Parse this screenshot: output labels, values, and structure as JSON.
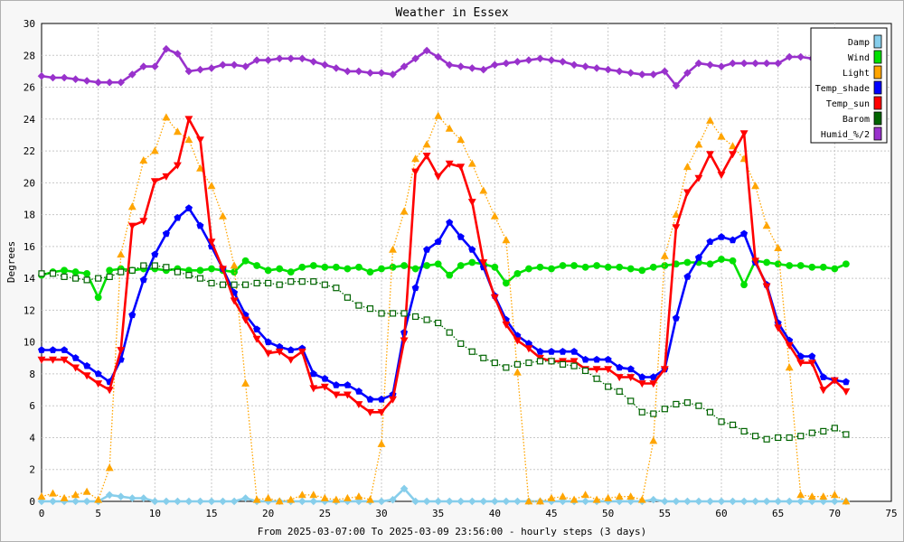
{
  "chart_data": {
    "type": "line",
    "title": "Weather in Essex",
    "xlabel": "From 2025-03-07:00 To 2025-03-09 23:56:00 - hourly steps (3 days)",
    "ylabel": "Degrees",
    "xlim": [
      0,
      75
    ],
    "ylim": [
      0,
      30
    ],
    "x_ticks": [
      0,
      5,
      10,
      15,
      20,
      25,
      30,
      35,
      40,
      45,
      50,
      55,
      60,
      65,
      70,
      75
    ],
    "y_ticks": [
      0,
      2,
      4,
      6,
      8,
      10,
      12,
      14,
      16,
      18,
      20,
      22,
      24,
      26,
      28,
      30
    ],
    "grid": true,
    "legend_position": "top-right",
    "series": [
      {
        "name": "Damp",
        "color": "#87ceeb",
        "marker": "diamond",
        "dash": "solid",
        "values": [
          0,
          0,
          0,
          0,
          0,
          0,
          0.4,
          0.3,
          0.2,
          0.2,
          0,
          0,
          0,
          0,
          0,
          0,
          0,
          0,
          0.2,
          0,
          0,
          0,
          0,
          0,
          0,
          0,
          0,
          0,
          0,
          0,
          0,
          0.1,
          0.8,
          0,
          0,
          0,
          0,
          0,
          0,
          0,
          0,
          0,
          0,
          0,
          0,
          0,
          0,
          0,
          0,
          0,
          0,
          0,
          0,
          0,
          0.1,
          0,
          0,
          0,
          0,
          0,
          0,
          0,
          0,
          0,
          0,
          0,
          0,
          0,
          0,
          0,
          0,
          0
        ]
      },
      {
        "name": "Wind",
        "color": "#00e000",
        "marker": "circle",
        "dash": "solid",
        "values": [
          14.2,
          14.4,
          14.5,
          14.4,
          14.3,
          12.8,
          14.5,
          14.6,
          14.5,
          14.6,
          14.6,
          14.5,
          14.6,
          14.5,
          14.5,
          14.6,
          14.5,
          14.4,
          15.1,
          14.8,
          14.5,
          14.6,
          14.4,
          14.7,
          14.8,
          14.7,
          14.7,
          14.6,
          14.7,
          14.4,
          14.6,
          14.7,
          14.8,
          14.6,
          14.8,
          14.9,
          14.2,
          14.8,
          15.0,
          14.9,
          14.7,
          13.7,
          14.3,
          14.6,
          14.7,
          14.6,
          14.8,
          14.8,
          14.7,
          14.8,
          14.7,
          14.7,
          14.6,
          14.5,
          14.7,
          14.8,
          14.9,
          15.0,
          15.0,
          14.9,
          15.2,
          15.1,
          13.6,
          15.1,
          15.0,
          14.9,
          14.8,
          14.8,
          14.7,
          14.7,
          14.6,
          14.9
        ]
      },
      {
        "name": "Light",
        "color": "#ffa500",
        "marker": "triangle-up",
        "dash": "dotted",
        "values": [
          0.3,
          0.5,
          0.2,
          0.4,
          0.6,
          0.1,
          2.1,
          15.5,
          18.5,
          21.4,
          22.0,
          24.1,
          23.2,
          22.7,
          20.9,
          19.8,
          17.9,
          14.8,
          7.4,
          0.1,
          0.2,
          0,
          0.1,
          0.4,
          0.4,
          0.2,
          0.1,
          0.2,
          0.3,
          0.1,
          3.6,
          15.8,
          18.2,
          21.5,
          22.4,
          24.2,
          23.4,
          22.7,
          21.2,
          19.5,
          17.9,
          16.4,
          8.1,
          0,
          0,
          0.2,
          0.3,
          0.1,
          0.4,
          0.1,
          0.2,
          0.3,
          0.3,
          0.1,
          3.8,
          15.4,
          18.0,
          21.0,
          22.4,
          23.9,
          22.9,
          22.3,
          21.5,
          19.8,
          17.3,
          15.9,
          8.4,
          0.4,
          0.3,
          0.3,
          0.4,
          0
        ]
      },
      {
        "name": "Temp_shade",
        "color": "#0000ff",
        "marker": "pentagon",
        "dash": "solid",
        "values": [
          9.5,
          9.5,
          9.5,
          9.0,
          8.5,
          8.0,
          7.5,
          8.9,
          11.7,
          13.9,
          15.5,
          16.8,
          17.8,
          18.4,
          17.3,
          16.0,
          14.6,
          13.1,
          11.7,
          10.8,
          10.0,
          9.7,
          9.5,
          9.6,
          8.0,
          7.7,
          7.3,
          7.3,
          6.9,
          6.4,
          6.4,
          6.7,
          10.6,
          13.4,
          15.8,
          16.3,
          17.5,
          16.6,
          15.8,
          14.7,
          12.9,
          11.4,
          10.4,
          9.9,
          9.4,
          9.4,
          9.4,
          9.4,
          8.9,
          8.9,
          8.9,
          8.4,
          8.3,
          7.8,
          7.8,
          8.3,
          11.5,
          14.1,
          15.3,
          16.3,
          16.6,
          16.4,
          16.8,
          15.0,
          13.6,
          11.2,
          10.1,
          9.1,
          9.1,
          7.8,
          7.6,
          7.5
        ]
      },
      {
        "name": "Temp_sun",
        "color": "#ff0000",
        "marker": "triangle-down",
        "dash": "solid",
        "values": [
          8.9,
          8.9,
          8.9,
          8.4,
          7.9,
          7.4,
          7.0,
          9.5,
          17.3,
          17.6,
          20.1,
          20.4,
          21.1,
          24.0,
          22.7,
          16.3,
          14.6,
          12.6,
          11.4,
          10.2,
          9.3,
          9.4,
          8.9,
          9.4,
          7.1,
          7.2,
          6.7,
          6.7,
          6.1,
          5.6,
          5.6,
          6.4,
          10.1,
          20.7,
          21.7,
          20.4,
          21.2,
          21.0,
          18.8,
          15.0,
          12.8,
          11.1,
          10.1,
          9.6,
          9.0,
          8.8,
          8.8,
          8.8,
          8.3,
          8.3,
          8.3,
          7.8,
          7.8,
          7.4,
          7.4,
          8.3,
          17.2,
          19.4,
          20.3,
          21.8,
          20.5,
          21.8,
          23.1,
          15.1,
          13.5,
          10.9,
          9.8,
          8.7,
          8.7,
          7.0,
          7.6,
          6.9
        ]
      },
      {
        "name": "Barom",
        "color": "#006400",
        "marker": "square",
        "dash": "dotted",
        "values": [
          14.3,
          14.3,
          14.1,
          14.0,
          13.9,
          14.0,
          14.1,
          14.4,
          14.5,
          14.8,
          14.8,
          14.7,
          14.4,
          14.2,
          14.0,
          13.7,
          13.6,
          13.6,
          13.6,
          13.7,
          13.7,
          13.6,
          13.8,
          13.8,
          13.8,
          13.6,
          13.4,
          12.8,
          12.3,
          12.1,
          11.8,
          11.8,
          11.8,
          11.6,
          11.4,
          11.2,
          10.6,
          9.9,
          9.4,
          9.0,
          8.7,
          8.4,
          8.6,
          8.7,
          8.8,
          8.8,
          8.6,
          8.5,
          8.2,
          7.7,
          7.2,
          6.9,
          6.3,
          5.6,
          5.5,
          5.8,
          6.1,
          6.2,
          6.0,
          5.6,
          5.0,
          4.8,
          4.4,
          4.1,
          3.9,
          4.0,
          4.0,
          4.1,
          4.3,
          4.4,
          4.6,
          4.2
        ]
      },
      {
        "name": "Humid_%/2",
        "color": "#9932cc",
        "marker": "diamond",
        "dash": "solid",
        "values": [
          26.7,
          26.6,
          26.6,
          26.5,
          26.4,
          26.3,
          26.3,
          26.3,
          26.8,
          27.3,
          27.3,
          28.4,
          28.1,
          27.0,
          27.1,
          27.2,
          27.4,
          27.4,
          27.3,
          27.7,
          27.7,
          27.8,
          27.8,
          27.8,
          27.6,
          27.4,
          27.2,
          27.0,
          27.0,
          26.9,
          26.9,
          26.8,
          27.3,
          27.8,
          28.3,
          27.9,
          27.4,
          27.3,
          27.2,
          27.1,
          27.4,
          27.5,
          27.6,
          27.7,
          27.8,
          27.7,
          27.6,
          27.4,
          27.3,
          27.2,
          27.1,
          27.0,
          26.9,
          26.8,
          26.8,
          27.0,
          26.1,
          26.9,
          27.5,
          27.4,
          27.3,
          27.5,
          27.5,
          27.5,
          27.5,
          27.5,
          27.9,
          27.9,
          27.8,
          27.6,
          27.5,
          27.4
        ]
      }
    ]
  }
}
